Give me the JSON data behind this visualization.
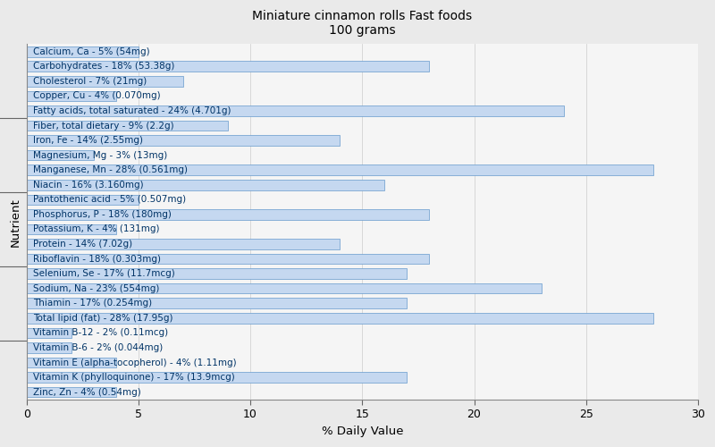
{
  "title": "Miniature cinnamon rolls Fast foods\n100 grams",
  "xlabel": "% Daily Value",
  "ylabel": "Nutrient",
  "bar_color": "#c5d8f0",
  "bar_edge_color": "#6699cc",
  "background_color": "#eaeaea",
  "plot_background_color": "#f5f5f5",
  "text_color": "#003366",
  "xlim": [
    0,
    30
  ],
  "nutrients": [
    "Calcium, Ca - 5% (54mg)",
    "Carbohydrates - 18% (53.38g)",
    "Cholesterol - 7% (21mg)",
    "Copper, Cu - 4% (0.070mg)",
    "Fatty acids, total saturated - 24% (4.701g)",
    "Fiber, total dietary - 9% (2.2g)",
    "Iron, Fe - 14% (2.55mg)",
    "Magnesium, Mg - 3% (13mg)",
    "Manganese, Mn - 28% (0.561mg)",
    "Niacin - 16% (3.160mg)",
    "Pantothenic acid - 5% (0.507mg)",
    "Phosphorus, P - 18% (180mg)",
    "Potassium, K - 4% (131mg)",
    "Protein - 14% (7.02g)",
    "Riboflavin - 18% (0.303mg)",
    "Selenium, Se - 17% (11.7mcg)",
    "Sodium, Na - 23% (554mg)",
    "Thiamin - 17% (0.254mg)",
    "Total lipid (fat) - 28% (17.95g)",
    "Vitamin B-12 - 2% (0.11mcg)",
    "Vitamin B-6 - 2% (0.044mg)",
    "Vitamin E (alpha-tocopherol) - 4% (1.11mg)",
    "Vitamin K (phylloquinone) - 17% (13.9mcg)",
    "Zinc, Zn - 4% (0.54mg)"
  ],
  "values": [
    5,
    18,
    7,
    4,
    24,
    9,
    14,
    3,
    28,
    16,
    5,
    18,
    4,
    14,
    18,
    17,
    23,
    17,
    28,
    2,
    2,
    4,
    17,
    4
  ],
  "font_size": 7.5,
  "title_font_size": 10,
  "bar_height": 0.7,
  "xticks": [
    0,
    5,
    10,
    15,
    20,
    25,
    30
  ],
  "group_separators": [
    3.5,
    8.5,
    13.5,
    18.5
  ]
}
